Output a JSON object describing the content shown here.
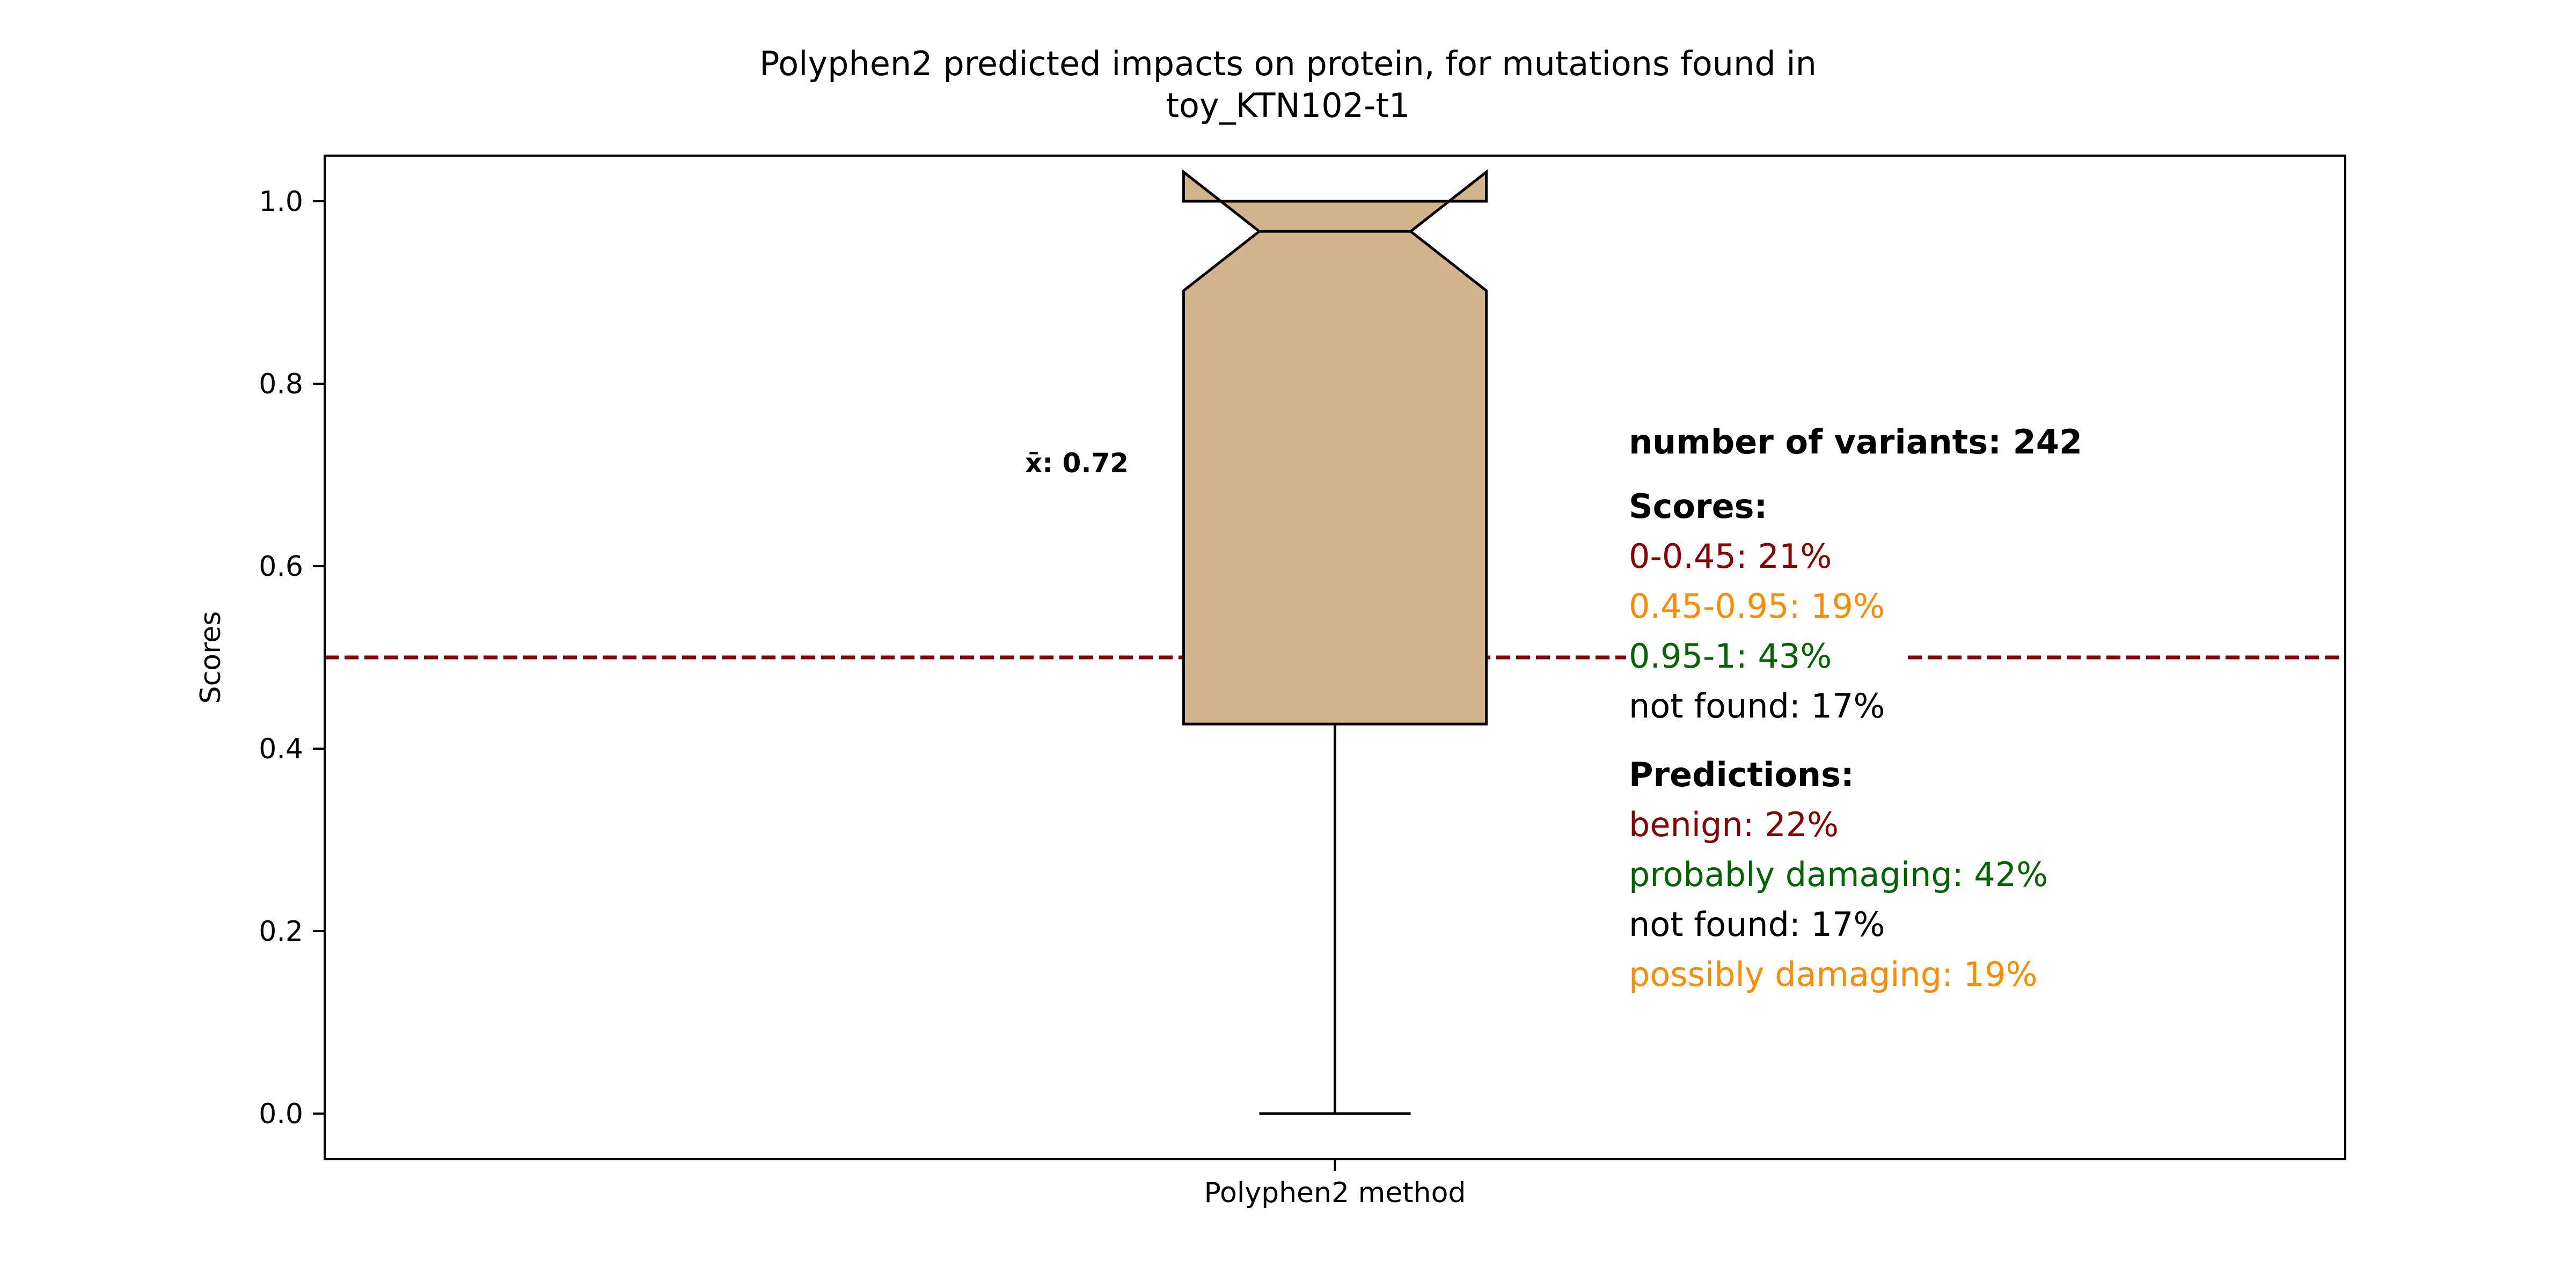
{
  "chart_data": {
    "type": "boxplot",
    "title": "Polyphen2 predicted impacts on protein, for mutations found in\ntoy_KTN102-t1",
    "xlabel": "",
    "ylabel": "Scores",
    "categories": [
      "Polyphen2 method"
    ],
    "ylim": [
      -0.05,
      1.05
    ],
    "yticks": [
      0.0,
      0.2,
      0.4,
      0.6,
      0.8,
      1.0
    ],
    "ytick_labels": [
      "0.0",
      "0.2",
      "0.4",
      "0.6",
      "0.8",
      "1.0"
    ],
    "box": {
      "whisker_low": 0.0,
      "q1": 0.427,
      "median": 0.967,
      "q3": 1.0,
      "whisker_high": 1.0,
      "notch_low": 0.902,
      "notch_high": 1.032,
      "color": "#d2b48c"
    },
    "mean_label": "x̄: 0.72",
    "threshold": {
      "y": 0.5,
      "color": "#8b0000",
      "style": "dashed"
    },
    "annotations": {
      "variants": "number of variants: 242",
      "scores_header": "Scores:",
      "scores": [
        {
          "text": "0-0.45: 21%",
          "color": "#8b0000"
        },
        {
          "text": "0.45-0.95: 19%",
          "color": "#ff8c00"
        },
        {
          "text": "0.95-1: 43%",
          "color": "#006400"
        },
        {
          "text": "not found: 17%",
          "color": "#000000"
        }
      ],
      "predictions_header": "Predictions:",
      "predictions": [
        {
          "text": "benign: 22%",
          "color": "#8b0000"
        },
        {
          "text": "probably damaging: 42%",
          "color": "#006400"
        },
        {
          "text": "not found: 17%",
          "color": "#000000"
        },
        {
          "text": "possibly damaging: 19%",
          "color": "#ff8c00"
        }
      ]
    }
  }
}
